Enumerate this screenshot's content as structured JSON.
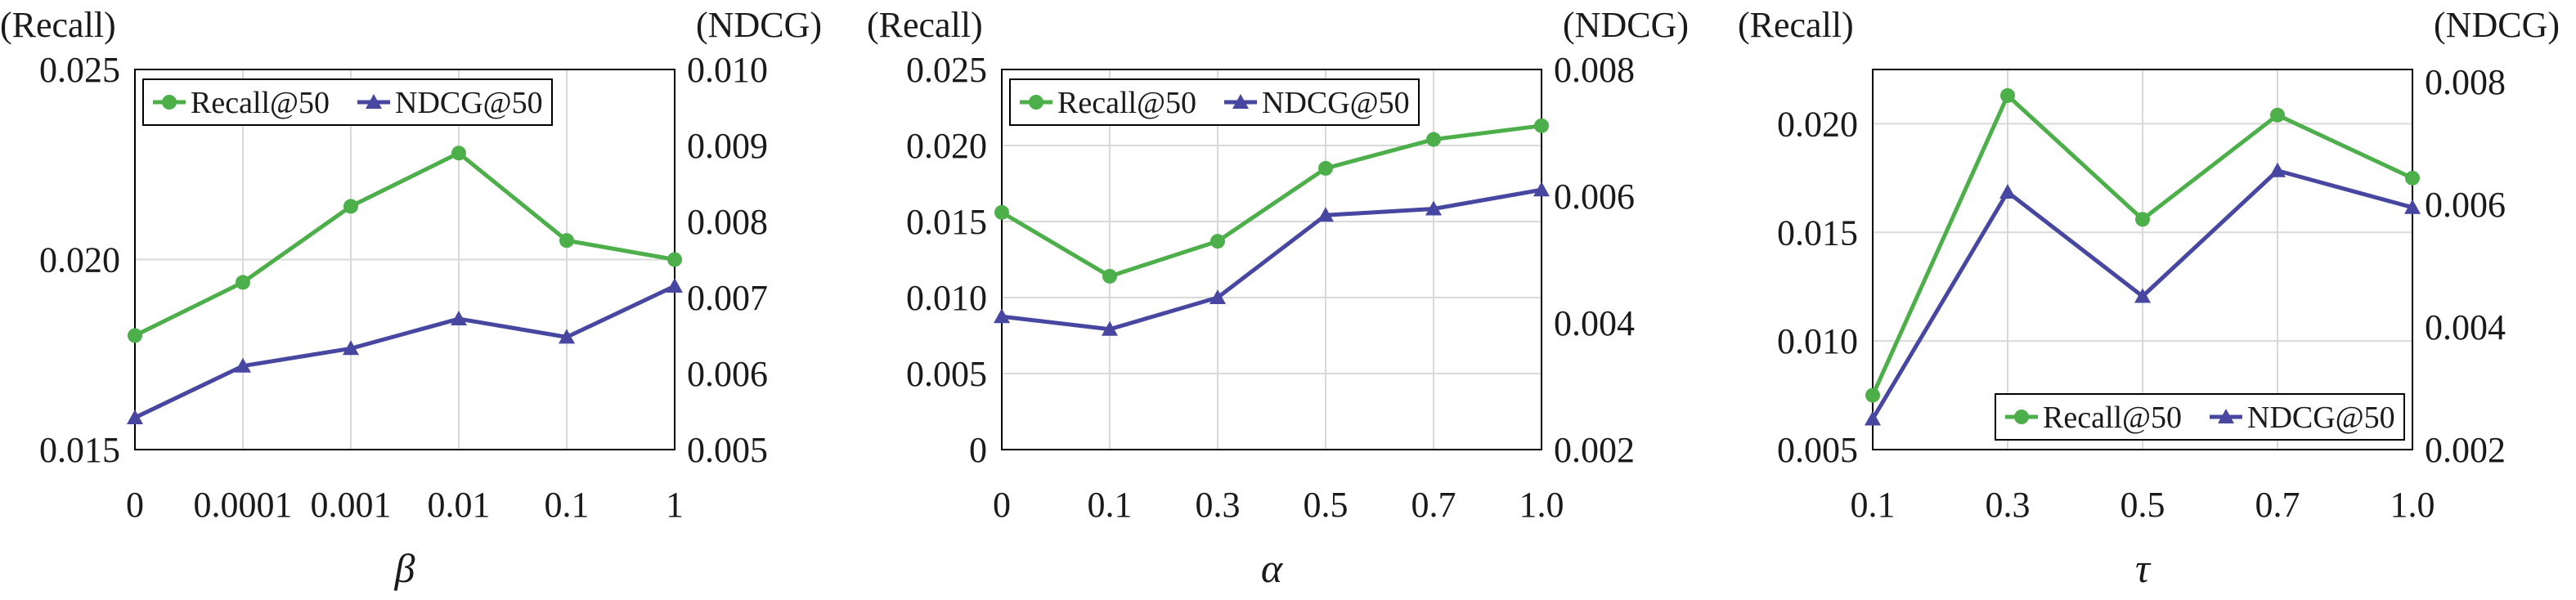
{
  "colors": {
    "recall": "#4daf4a",
    "ndcg": "#4747a1",
    "grid": "#d9d9d9",
    "frame": "#000000"
  },
  "chart_data": [
    {
      "type": "line",
      "xlabel": "β",
      "categories": [
        "0",
        "0.0001",
        "0.001",
        "0.01",
        "0.1",
        "1"
      ],
      "left_unit": "(Recall)",
      "right_unit": "(NDCG)",
      "left_ylim": [
        0.015,
        0.025
      ],
      "left_ticks": [
        "0.015",
        "0.020",
        "0.025"
      ],
      "right_ylim": [
        0.005,
        0.01
      ],
      "right_ticks": [
        "0.005",
        "0.006",
        "0.007",
        "0.008",
        "0.009",
        "0.010"
      ],
      "grid": true,
      "legend_position": "top-left",
      "series": [
        {
          "name": "Recall@50",
          "axis": "left",
          "marker": "circle",
          "values": [
            0.018,
            0.0194,
            0.0214,
            0.0228,
            0.0205,
            0.02
          ]
        },
        {
          "name": "NDCG@50",
          "axis": "right",
          "marker": "triangle",
          "values": [
            0.00542,
            0.0061,
            0.00633,
            0.00672,
            0.00648,
            0.00715
          ]
        }
      ]
    },
    {
      "type": "line",
      "xlabel": "α",
      "categories": [
        "0",
        "0.1",
        "0.3",
        "0.5",
        "0.7",
        "1.0"
      ],
      "left_unit": "(Recall)",
      "right_unit": "(NDCG)",
      "left_ylim": [
        0,
        0.025
      ],
      "left_ticks": [
        "0",
        "0.005",
        "0.010",
        "0.015",
        "0.020",
        "0.025"
      ],
      "right_ylim": [
        0.002,
        0.008
      ],
      "right_ticks": [
        "0.002",
        "0.004",
        "0.006",
        "0.008"
      ],
      "grid": true,
      "legend_position": "top-left",
      "series": [
        {
          "name": "Recall@50",
          "axis": "left",
          "marker": "circle",
          "values": [
            0.0156,
            0.0114,
            0.0137,
            0.0185,
            0.0204,
            0.0213
          ]
        },
        {
          "name": "NDCG@50",
          "axis": "right",
          "marker": "triangle",
          "values": [
            0.0041,
            0.0039,
            0.0044,
            0.0057,
            0.0058,
            0.0061
          ]
        }
      ]
    },
    {
      "type": "line",
      "xlabel": "τ",
      "categories": [
        "0.1",
        "0.3",
        "0.5",
        "0.7",
        "1.0"
      ],
      "left_unit": "(Recall)",
      "right_unit": "(NDCG)",
      "left_ylim": [
        0.005,
        0.0225
      ],
      "left_ticks": [
        "0.005",
        "0.010",
        "0.015",
        "0.020"
      ],
      "right_ylim": [
        0.002,
        0.0082
      ],
      "right_ticks": [
        "0.002",
        "0.004",
        "0.006",
        "0.008"
      ],
      "grid": true,
      "legend_position": "bottom-right",
      "series": [
        {
          "name": "Recall@50",
          "axis": "left",
          "marker": "circle",
          "values": [
            0.0075,
            0.0213,
            0.0156,
            0.0204,
            0.0175
          ]
        },
        {
          "name": "NDCG@50",
          "axis": "right",
          "marker": "triangle",
          "values": [
            0.0025,
            0.0062,
            0.0045,
            0.00655,
            0.00595
          ]
        }
      ]
    }
  ]
}
